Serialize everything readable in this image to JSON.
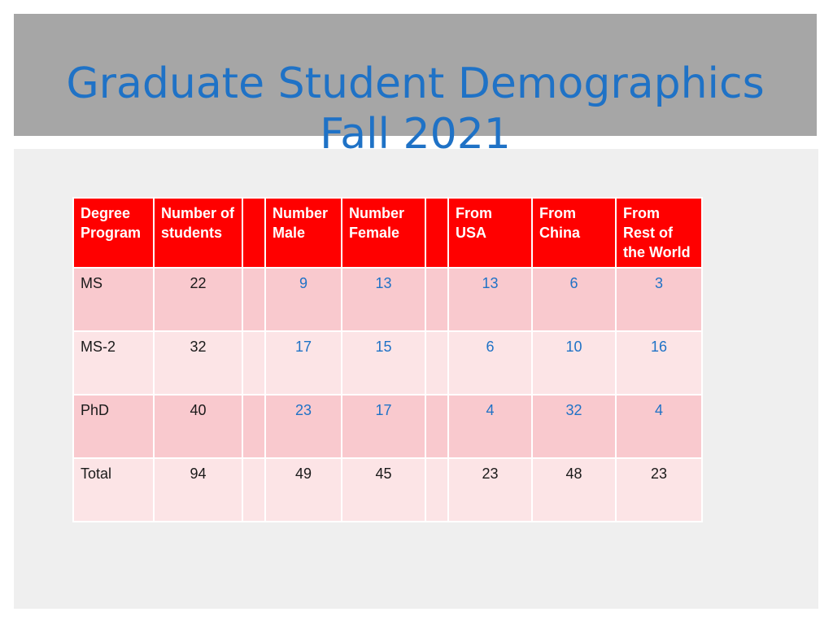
{
  "title": {
    "line1": "Graduate Student Demographics",
    "line2": "Fall 2021"
  },
  "table": {
    "headers": {
      "degree_program": "Degree Program",
      "number_of_students": "Number of students",
      "spacer1": "",
      "number_male": "Number Male",
      "number_female": "Number Female",
      "spacer2": "",
      "from_usa": "From USA",
      "from_china": "From China",
      "from_rest_of_world": "From Rest of the World"
    },
    "rows": [
      {
        "program": "MS",
        "students": "22",
        "male": "9",
        "female": "13",
        "usa": "13",
        "china": "6",
        "rest": "3"
      },
      {
        "program": "MS-2",
        "students": "32",
        "male": "17",
        "female": "15",
        "usa": "6",
        "china": "10",
        "rest": "16"
      },
      {
        "program": "PhD",
        "students": "40",
        "male": "23",
        "female": "17",
        "usa": "4",
        "china": "32",
        "rest": "4"
      },
      {
        "program": "Total",
        "students": "94",
        "male": "49",
        "female": "45",
        "usa": "23",
        "china": "48",
        "rest": "23"
      }
    ]
  },
  "colors": {
    "title_text": "#1f72c6",
    "title_band": "#a6a6a6",
    "header_bg": "#ff0000",
    "row_dark": "#f9c9ce",
    "row_light": "#fce4e6",
    "value_blue": "#1f72c6"
  }
}
